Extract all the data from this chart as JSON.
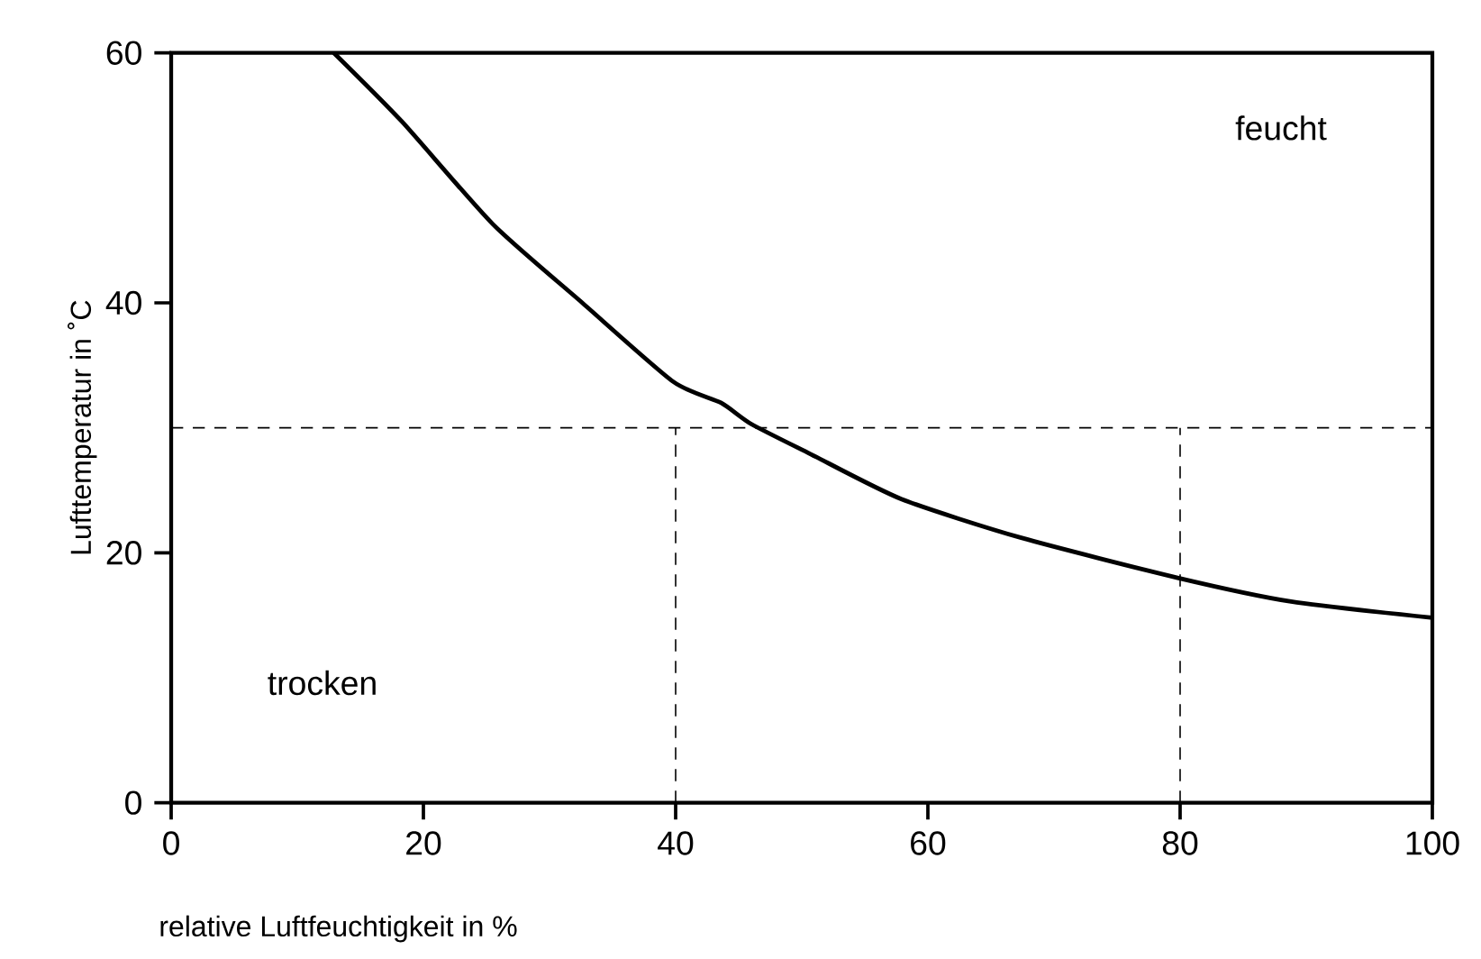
{
  "chart_data": {
    "type": "line",
    "xlabel": "relative Luftfeuchtigkeit in %",
    "ylabel": "Lufttemperatur in ˚C",
    "x": [
      12.9,
      18.3,
      25.5,
      32.6,
      39.8,
      43.6,
      46,
      50.7,
      57.9,
      67.4,
      79.8,
      88.8,
      100
    ],
    "values": [
      60,
      54.5,
      46.3,
      40,
      33.7,
      32,
      30.3,
      27.9,
      24.3,
      21.2,
      18,
      16.1,
      14.8
    ],
    "color": "#000000",
    "xlim": [
      0,
      100
    ],
    "ylim": [
      0,
      60
    ],
    "xticks": [
      0,
      20,
      40,
      60,
      80,
      100
    ],
    "yticks": [
      0,
      20,
      40,
      60
    ],
    "ref_lines": [
      {
        "axis": "y",
        "value": 30,
        "line_style": "dashed"
      },
      {
        "axis": "x",
        "value": 40,
        "line_style": "dashed"
      },
      {
        "axis": "x",
        "value": 80,
        "line_style": "dashed"
      }
    ],
    "annotations": [
      "feucht",
      "trocken"
    ]
  }
}
